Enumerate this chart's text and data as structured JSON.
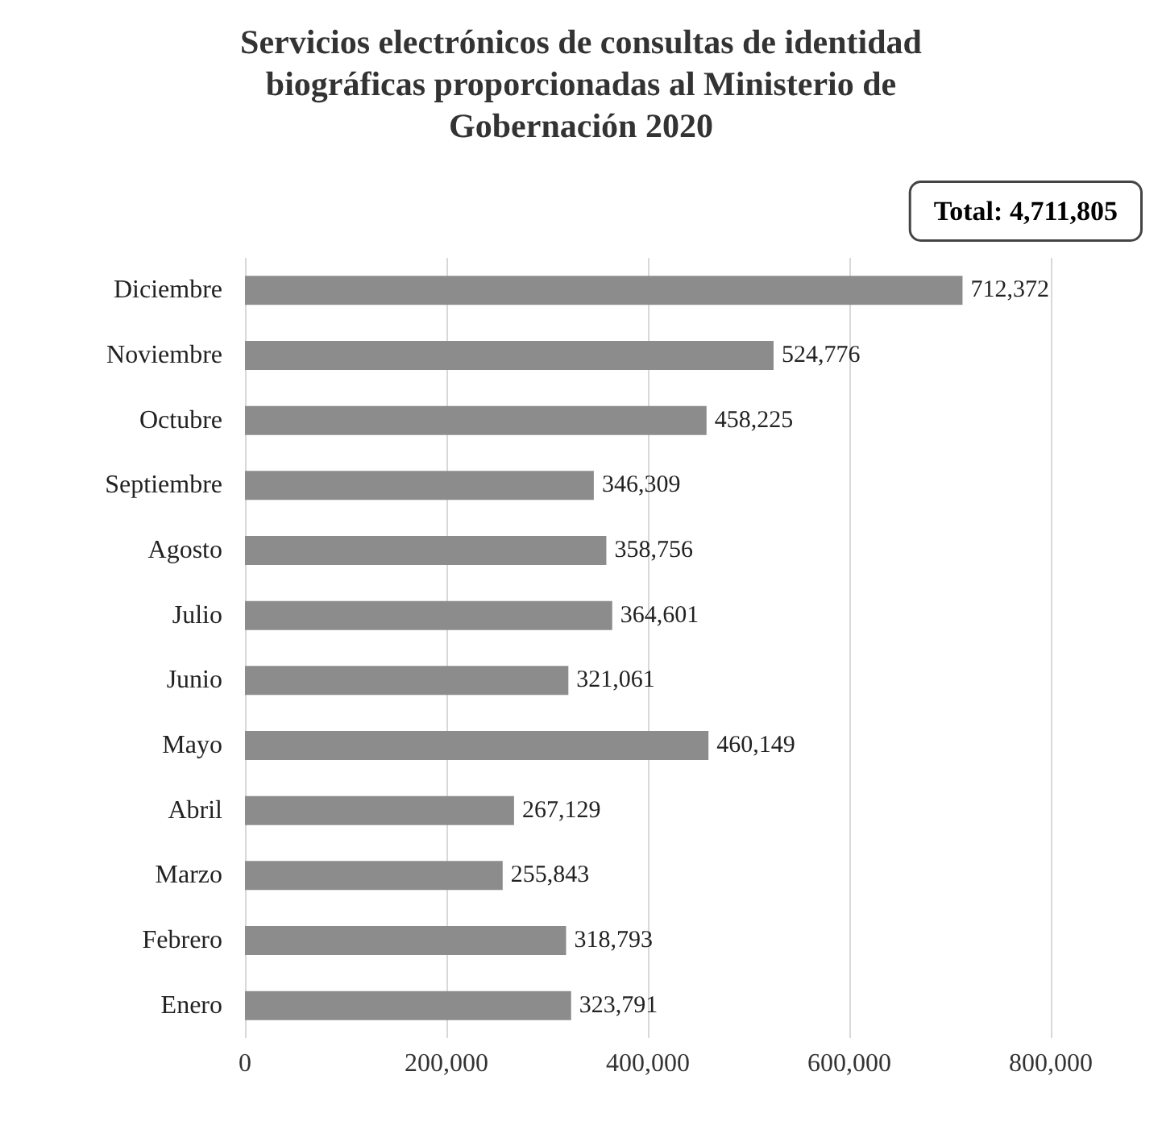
{
  "chart_data": {
    "type": "bar",
    "orientation": "horizontal",
    "title": "Servicios electrónicos de consultas de identidad\nbiográficas proporcionadas al Ministerio de\nGobernación 2020",
    "categories": [
      "Diciembre",
      "Noviembre",
      "Octubre",
      "Septiembre",
      "Agosto",
      "Julio",
      "Junio",
      "Mayo",
      "Abril",
      "Marzo",
      "Febrero",
      "Enero"
    ],
    "values": [
      712372,
      524776,
      458225,
      346309,
      358756,
      364601,
      321061,
      460149,
      267129,
      255843,
      318793,
      323791
    ],
    "value_labels": [
      "712,372",
      "524,776",
      "458,225",
      "346,309",
      "358,756",
      "364,601",
      "321,061",
      "460,149",
      "267,129",
      "255,843",
      "318,793",
      "323,791"
    ],
    "color": "#8c8c8c",
    "xlim": [
      0,
      800000
    ],
    "xticks": [
      0,
      {
        "value": 200000,
        "label": "200,000"
      },
      {
        "value": 400000,
        "label": "400,000"
      },
      {
        "value": 600000,
        "label": "600,000"
      },
      {
        "value": 800000,
        "label": "800,000"
      }
    ],
    "grid": "x",
    "annotations": [
      "Total: 4,711,805"
    ]
  }
}
